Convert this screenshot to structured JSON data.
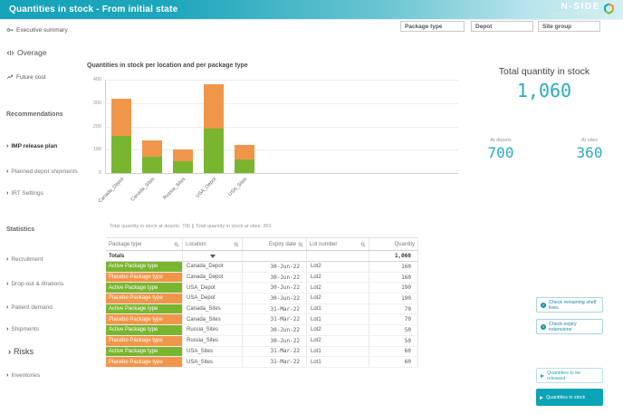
{
  "palette": {
    "teal": "#14a5b8",
    "kpi_teal": "#2aa9c0",
    "active_green": "#79b52f",
    "placebo_orange": "#f0964a"
  },
  "header": {
    "title": "Quantities in stock - From initial state",
    "logo_text": "N-SIDE",
    "logo_tagline": "OPTIMIZING YOUR DECISIONS"
  },
  "filters": {
    "package_type": "Package type",
    "depot": "Depot",
    "site_group": "Site group"
  },
  "sidebar": {
    "items": [
      {
        "label": "Executive summary"
      },
      {
        "label": "Overage"
      },
      {
        "label": "Future cost"
      },
      {
        "label": "Recommendations"
      },
      {
        "label": "IMP release plan"
      },
      {
        "label": "Planned depot shipments"
      },
      {
        "label": "IRT Settings"
      },
      {
        "label": "Statistics"
      },
      {
        "label": "Recruitment"
      },
      {
        "label": "Drop-out & titrations"
      },
      {
        "label": "Patient demand"
      },
      {
        "label": "Shipments"
      },
      {
        "label": "Risks"
      },
      {
        "label": "Inventories"
      }
    ]
  },
  "chart_data": {
    "type": "bar",
    "stacked": true,
    "title": "Quantities in stock per location and per package type",
    "categories": [
      "Canada_Depot",
      "Canada_Sites",
      "Russia_Sites",
      "USA_Depot",
      "USA_Sites"
    ],
    "series": [
      {
        "name": "Active Package type",
        "color": "#79b52f",
        "values": [
          160,
          70,
          50,
          190,
          60
        ]
      },
      {
        "name": "Placebo Package type",
        "color": "#f0964a",
        "values": [
          160,
          70,
          50,
          190,
          60
        ]
      }
    ],
    "totals_per_category": [
      320,
      140,
      100,
      380,
      120
    ],
    "xlabel": "",
    "ylabel": "",
    "ylim": [
      0,
      400
    ],
    "yticks": [
      0,
      100,
      200,
      300,
      400
    ],
    "grid": true,
    "legend": "none"
  },
  "kpi": {
    "title": "Total quantity in stock",
    "total": "1,060",
    "depots_label": "At depots",
    "depots_value": "700",
    "sites_label": "At sites",
    "sites_value": "360"
  },
  "table": {
    "caption": "Total quantity in stock at depots: 700 || Total quantity in stock at sites: 360",
    "columns": [
      "Package type",
      "Location",
      "Expiry date",
      "Lot number",
      "Quantity"
    ],
    "totals_label": "Totals",
    "totals_value": "1,060",
    "rows": [
      {
        "package_type": "Active Package type",
        "color": "active",
        "location": "Canada_Depot",
        "expiry": "30-Jun-22",
        "lot": "Lot2",
        "qty": "160"
      },
      {
        "package_type": "Placebo Package type",
        "color": "placebo",
        "location": "Canada_Depot",
        "expiry": "30-Jun-22",
        "lot": "Lot2",
        "qty": "160"
      },
      {
        "package_type": "Active Package type",
        "color": "active",
        "location": "USA_Depot",
        "expiry": "30-Jun-22",
        "lot": "Lot2",
        "qty": "190"
      },
      {
        "package_type": "Placebo Package type",
        "color": "placebo",
        "location": "USA_Depot",
        "expiry": "30-Jun-22",
        "lot": "Lot2",
        "qty": "190"
      },
      {
        "package_type": "Active Package type",
        "color": "active",
        "location": "Canada_Sites",
        "expiry": "31-Mar-22",
        "lot": "Lot1",
        "qty": "70"
      },
      {
        "package_type": "Placebo Package type",
        "color": "placebo",
        "location": "Canada_Sites",
        "expiry": "31-Mar-22",
        "lot": "Lot1",
        "qty": "70"
      },
      {
        "package_type": "Active Package type",
        "color": "active",
        "location": "Russia_Sites",
        "expiry": "30-Jun-22",
        "lot": "Lot2",
        "qty": "50"
      },
      {
        "package_type": "Placebo Package type",
        "color": "placebo",
        "location": "Russia_Sites",
        "expiry": "30-Jun-22",
        "lot": "Lot2",
        "qty": "50"
      },
      {
        "package_type": "Active Package type",
        "color": "active",
        "location": "USA_Sites",
        "expiry": "31-Mar-22",
        "lot": "Lot1",
        "qty": "60"
      },
      {
        "package_type": "Placebo Package type",
        "color": "placebo",
        "location": "USA_Sites",
        "expiry": "31-Mar-22",
        "lot": "Lot1",
        "qty": "60"
      }
    ]
  },
  "actions": {
    "check_shelf_lives": "Check remaining shelf lives",
    "check_expiry": "Check expiry extensions",
    "to_be_released": "Quantities to be released",
    "in_stock": "Quantities in stock"
  }
}
